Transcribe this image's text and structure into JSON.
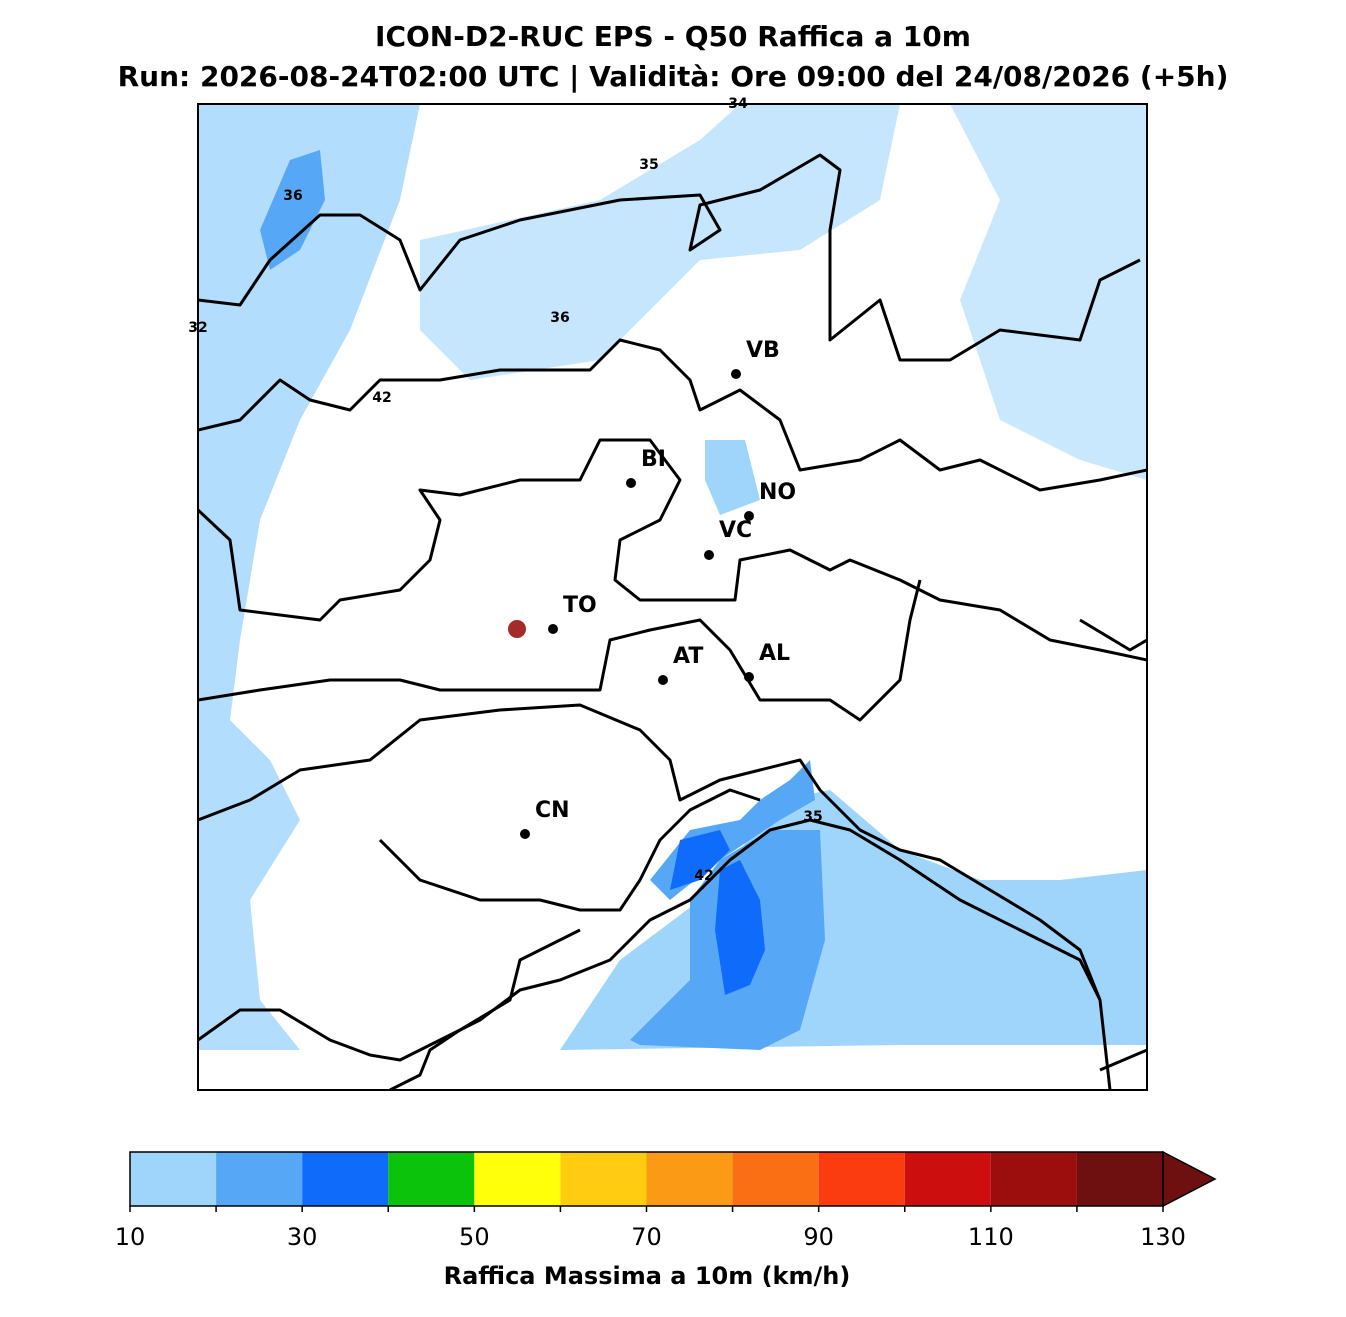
{
  "header": {
    "title": "ICON-D2-RUC EPS - Q50 Raffica a 10m",
    "subtitle": "Run: 2026-08-24T02:00 UTC | Validità: Ore 09:00 del 24/08/2026 (+5h)"
  },
  "cities": [
    "VB",
    "BI",
    "NO",
    "VC",
    "TO",
    "AT",
    "AL",
    "CN"
  ],
  "contour_labels": [
    34,
    35,
    36,
    36,
    32,
    42,
    35,
    42
  ],
  "colorbar": {
    "label": "Raffica Massima a 10m (km/h)",
    "levels": [
      10,
      20,
      30,
      40,
      50,
      60,
      70,
      80,
      90,
      100,
      110,
      120,
      130
    ],
    "colors": [
      "#9fd5fb",
      "#56a8f7",
      "#0f6cfb",
      "#0cc30c",
      "#ffff0a",
      "#ffcc11",
      "#fb9a14",
      "#fa6f14",
      "#fb3c10",
      "#cc0e0e",
      "#9c0e0e",
      "#6e1010"
    ],
    "extend_color": "#6e1010",
    "ticks": [
      10,
      30,
      50,
      70,
      90,
      110,
      130
    ]
  }
}
